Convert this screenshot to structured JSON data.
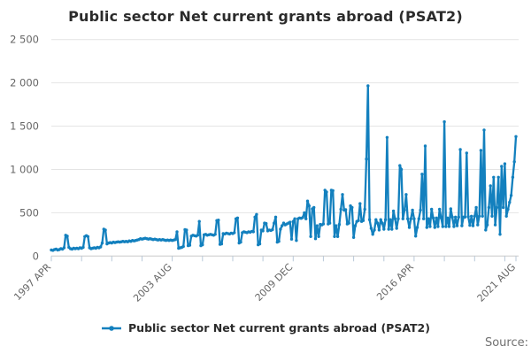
{
  "title": "Public sector Net current grants abroad (PSAT2)",
  "legend": {
    "label": "Public sector Net current grants abroad (PSAT2)"
  },
  "source_label": "Source:",
  "colors": {
    "line": "#1380be",
    "grid": "#e4e4e4",
    "axis": "#c9c9c9",
    "tick": "#b9c9d9",
    "title_text": "#2b2b2b",
    "axis_text": "#666666",
    "source_text": "#707070"
  },
  "chart_data": {
    "type": "line",
    "title": "Public sector Net current grants abroad (PSAT2)",
    "xlabel": "",
    "ylabel": "",
    "frequency": "monthly",
    "x_start": "1997 APR",
    "x_end": "2021 AUG",
    "ylim": [
      0,
      2500
    ],
    "grid": "horizontal",
    "legend_position": "bottom",
    "y_tick_values": [
      0,
      500,
      1000,
      1500,
      2000,
      2500
    ],
    "y_tick_labels": [
      "0",
      "500",
      "1 000",
      "1 500",
      "2 000",
      "2 500"
    ],
    "x_tick_month_offsets": [
      0,
      19,
      38,
      57,
      76,
      95,
      114,
      133,
      152,
      171,
      190,
      209,
      228,
      247,
      266,
      285,
      292
    ],
    "x_labeled_ticks": [
      {
        "month": 0,
        "label": "1997 APR"
      },
      {
        "month": 76,
        "label": "2003 AUG"
      },
      {
        "month": 152,
        "label": "2009 DEC"
      },
      {
        "month": 228,
        "label": "2016 APR"
      },
      {
        "month": 292,
        "label": "2021 AUG"
      }
    ],
    "series": [
      {
        "name": "Public sector Net current grants abroad (PSAT2)",
        "values": [
          70,
          65,
          75,
          80,
          70,
          75,
          85,
          80,
          95,
          240,
          230,
          100,
          85,
          80,
          90,
          85,
          90,
          85,
          95,
          90,
          100,
          225,
          235,
          225,
          95,
          85,
          90,
          95,
          90,
          100,
          95,
          105,
          150,
          310,
          300,
          140,
          150,
          155,
          150,
          160,
          155,
          160,
          165,
          160,
          165,
          170,
          165,
          170,
          165,
          175,
          170,
          180,
          175,
          180,
          185,
          190,
          200,
          195,
          200,
          205,
          200,
          195,
          200,
          195,
          190,
          195,
          190,
          185,
          190,
          185,
          190,
          185,
          180,
          185,
          180,
          185,
          180,
          185,
          190,
          280,
          90,
          95,
          100,
          110,
          305,
          300,
          120,
          125,
          230,
          240,
          235,
          230,
          240,
          400,
          120,
          130,
          245,
          250,
          240,
          245,
          250,
          245,
          240,
          250,
          410,
          415,
          135,
          140,
          260,
          255,
          265,
          260,
          255,
          265,
          260,
          270,
          430,
          440,
          150,
          160,
          270,
          280,
          275,
          270,
          280,
          275,
          285,
          280,
          450,
          480,
          130,
          140,
          300,
          290,
          380,
          375,
          290,
          300,
          295,
          305,
          380,
          450,
          160,
          170,
          310,
          350,
          380,
          360,
          370,
          380,
          390,
          195,
          400,
          430,
          180,
          430,
          440,
          435,
          445,
          500,
          430,
          635,
          580,
          225,
          545,
          560,
          200,
          350,
          225,
          365,
          360,
          370,
          760,
          740,
          370,
          380,
          760,
          755,
          225,
          350,
          225,
          365,
          540,
          710,
          530,
          535,
          370,
          380,
          580,
          560,
          215,
          350,
          400,
          410,
          605,
          400,
          410,
          540,
          1120,
          1965,
          420,
          320,
          250,
          300,
          420,
          380,
          300,
          420,
          380,
          310,
          420,
          1370,
          310,
          420,
          310,
          520,
          430,
          320,
          430,
          1045,
          1000,
          430,
          530,
          710,
          430,
          330,
          430,
          530,
          430,
          230,
          330,
          430,
          530,
          945,
          430,
          1270,
          330,
          430,
          340,
          540,
          440,
          330,
          440,
          340,
          540,
          440,
          340,
          1550,
          340,
          440,
          340,
          545,
          450,
          340,
          450,
          350,
          450,
          1230,
          350,
          450,
          450,
          1190,
          455,
          355,
          460,
          350,
          460,
          560,
          360,
          460,
          1220,
          460,
          1455,
          300,
          360,
          560,
          810,
          460,
          910,
          360,
          560,
          910,
          250,
          1035,
          560,
          1065,
          460,
          540,
          620,
          700,
          910,
          1090,
          1380
        ]
      }
    ]
  }
}
